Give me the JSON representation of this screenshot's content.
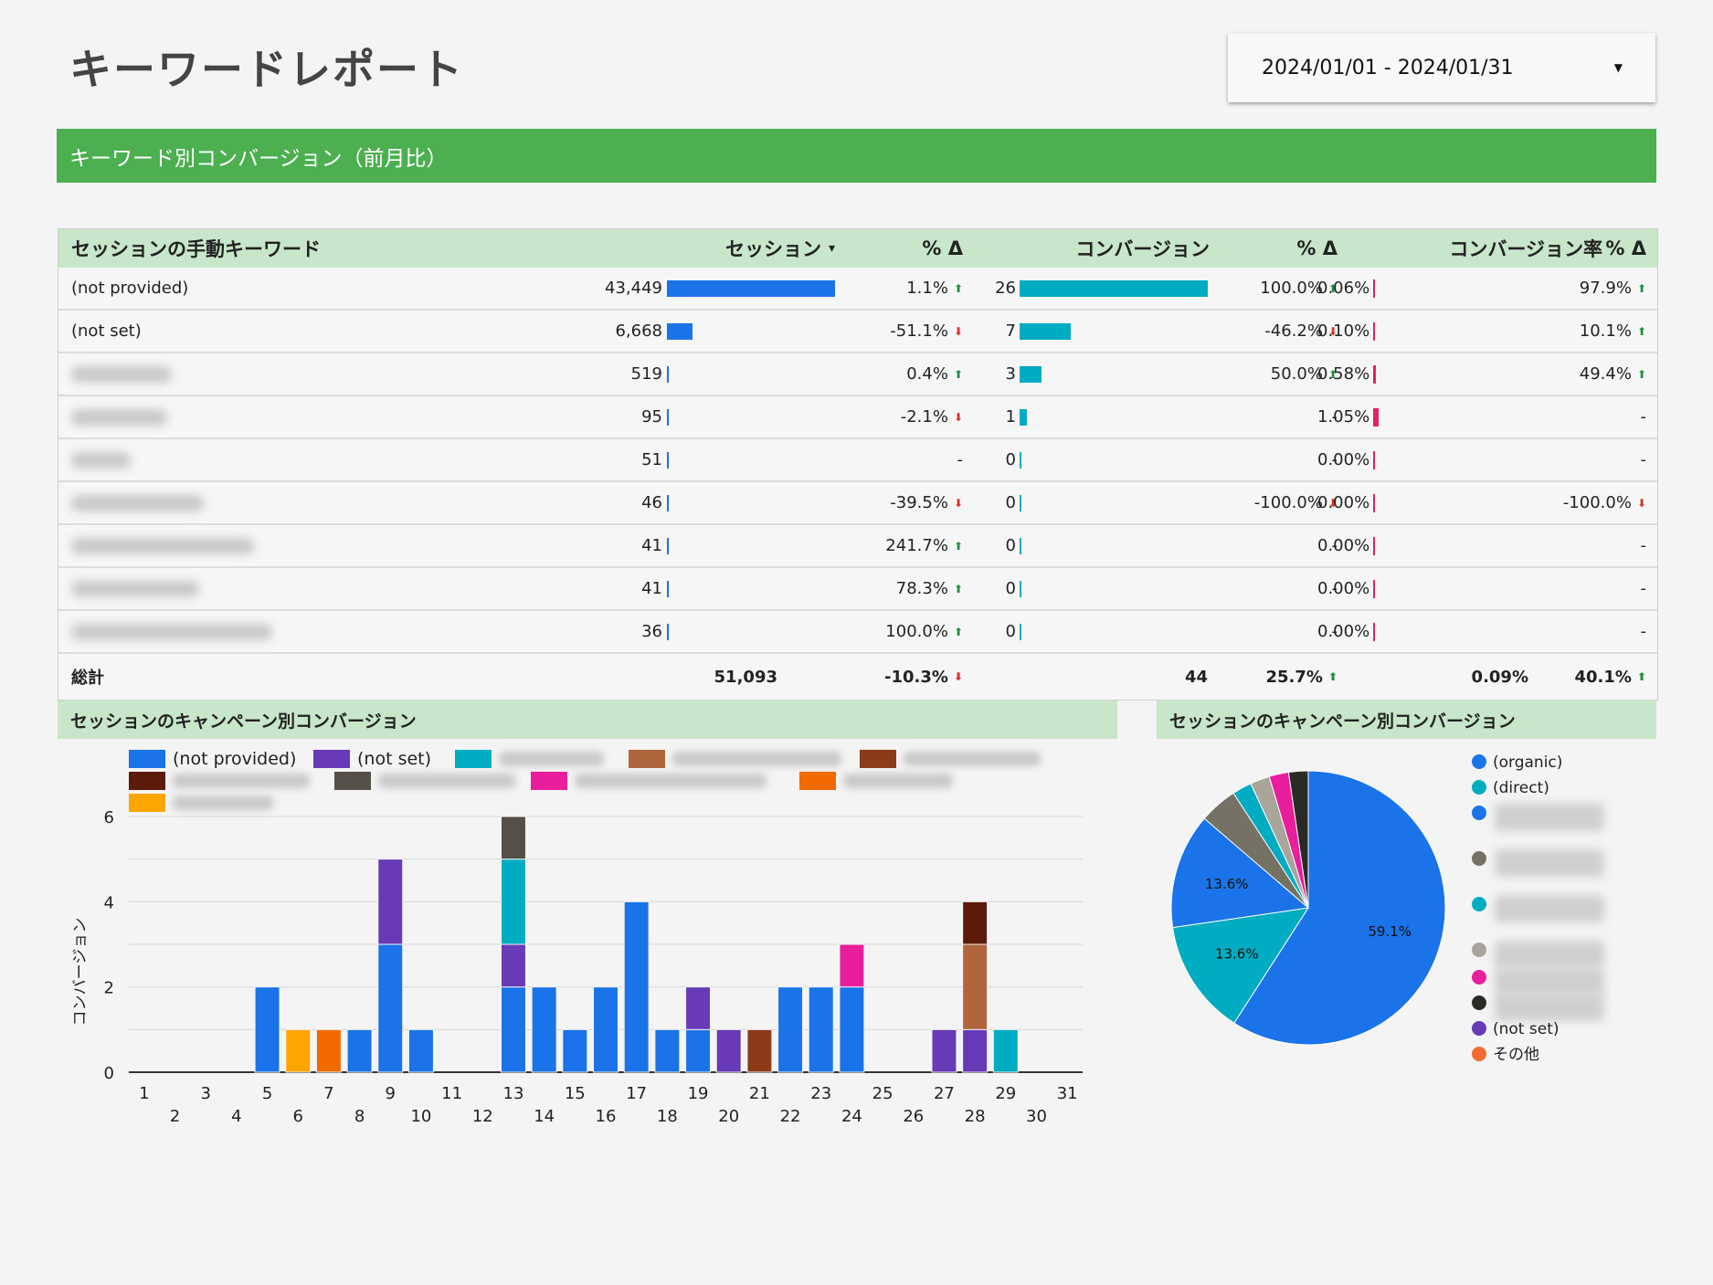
{
  "header": {
    "title": "キーワードレポート",
    "date_range": "2024/01/01 - 2024/01/31"
  },
  "section_title": "キーワード別コンバージョン（前月比）",
  "table": {
    "columns": [
      "セッションの手動キーワード",
      "セッション",
      "% Δ",
      "コンバージョン",
      "% Δ",
      "コンバージョン率",
      "% Δ"
    ],
    "rows": [
      {
        "keyword": "(not provided)",
        "blurred": false,
        "sessions": "43,449",
        "s_bar": 1.0,
        "s_delta": "1.1%",
        "s_dir": "up",
        "conv": "26",
        "c_bar": 1.0,
        "c_delta": "100.0%",
        "c_dir": "up",
        "rate": "0.06%",
        "r_bar": 0.05,
        "r_delta": "97.9%",
        "r_dir": "up"
      },
      {
        "keyword": "(not set)",
        "blurred": false,
        "sessions": "6,668",
        "s_bar": 0.153,
        "s_delta": "-51.1%",
        "s_dir": "down",
        "conv": "7",
        "c_bar": 0.27,
        "c_delta": "-46.2%",
        "c_dir": "down",
        "rate": "0.10%",
        "r_bar": 0.1,
        "r_delta": "10.1%",
        "r_dir": "up"
      },
      {
        "keyword": "",
        "blurred": true,
        "blur_w": 110,
        "sessions": "519",
        "s_bar": 0.012,
        "s_delta": "0.4%",
        "s_dir": "up",
        "conv": "3",
        "c_bar": 0.115,
        "c_delta": "50.0%",
        "c_dir": "up",
        "rate": "0.58%",
        "r_bar": 0.55,
        "r_delta": "49.4%",
        "r_dir": "up"
      },
      {
        "keyword": "",
        "blurred": true,
        "blur_w": 105,
        "sessions": "95",
        "s_bar": 0.002,
        "s_delta": "-2.1%",
        "s_dir": "down",
        "conv": "1",
        "c_bar": 0.038,
        "c_delta": "-",
        "c_dir": "",
        "rate": "1.05%",
        "r_bar": 1.0,
        "r_delta": "-",
        "r_dir": ""
      },
      {
        "keyword": "",
        "blurred": true,
        "blur_w": 65,
        "sessions": "51",
        "s_bar": 0.001,
        "s_delta": "-",
        "s_dir": "",
        "conv": "0",
        "c_bar": 0,
        "c_delta": "-",
        "c_dir": "",
        "rate": "0.00%",
        "r_bar": 0,
        "r_delta": "-",
        "r_dir": ""
      },
      {
        "keyword": "",
        "blurred": true,
        "blur_w": 145,
        "sessions": "46",
        "s_bar": 0.001,
        "s_delta": "-39.5%",
        "s_dir": "down",
        "conv": "0",
        "c_bar": 0,
        "c_delta": "-100.0%",
        "c_dir": "down",
        "rate": "0.00%",
        "r_bar": 0,
        "r_delta": "-100.0%",
        "r_dir": "down"
      },
      {
        "keyword": "",
        "blurred": true,
        "blur_w": 200,
        "sessions": "41",
        "s_bar": 0.001,
        "s_delta": "241.7%",
        "s_dir": "up",
        "conv": "0",
        "c_bar": 0,
        "c_delta": "-",
        "c_dir": "",
        "rate": "0.00%",
        "r_bar": 0,
        "r_delta": "-",
        "r_dir": ""
      },
      {
        "keyword": "",
        "blurred": true,
        "blur_w": 140,
        "sessions": "41",
        "s_bar": 0.001,
        "s_delta": "78.3%",
        "s_dir": "up",
        "conv": "0",
        "c_bar": 0,
        "c_delta": "-",
        "c_dir": "",
        "rate": "0.00%",
        "r_bar": 0,
        "r_delta": "-",
        "r_dir": ""
      },
      {
        "keyword": "",
        "blurred": true,
        "blur_w": 220,
        "sessions": "36",
        "s_bar": 0.001,
        "s_delta": "100.0%",
        "s_dir": "up",
        "conv": "0",
        "c_bar": 0,
        "c_delta": "-",
        "c_dir": "",
        "rate": "0.00%",
        "r_bar": 0,
        "r_delta": "-",
        "r_dir": ""
      }
    ],
    "total": {
      "label": "総計",
      "sessions": "51,093",
      "s_delta": "-10.3%",
      "s_dir": "down",
      "conv": "44",
      "c_delta": "25.7%",
      "c_dir": "up",
      "rate": "0.09%",
      "r_delta": "40.1%",
      "r_dir": "up"
    }
  },
  "colors": {
    "sessions_bar": "#1a73e8",
    "conv_bar": "#00acc1",
    "rate_bar": "#e91e63",
    "up": "#1e8e3e",
    "down": "#d93025",
    "banner": "#4caf50",
    "header_bg": "#c8e6c9"
  },
  "bar_panel_title": "セッションのキャンペーン別コンバージョン",
  "pie_panel_title": "セッションのキャンペーン別コンバージョン",
  "chart_data": [
    {
      "type": "bar",
      "stacked": true,
      "ylabel": "コンバージョン",
      "ylim": [
        0,
        6
      ],
      "yticks": [
        0,
        2,
        4,
        6
      ],
      "categories": [
        "1",
        "2",
        "3",
        "4",
        "5",
        "6",
        "7",
        "8",
        "9",
        "10",
        "11",
        "12",
        "13",
        "14",
        "15",
        "16",
        "17",
        "18",
        "19",
        "20",
        "21",
        "22",
        "23",
        "24",
        "25",
        "26",
        "27",
        "28",
        "29",
        "30",
        "31"
      ],
      "legend": [
        {
          "name": "(not provided)",
          "color": "#1a73e8",
          "blurred": false
        },
        {
          "name": "(not set)",
          "color": "#673ab7",
          "blurred": false
        },
        {
          "name": "",
          "color": "#00acc1",
          "blurred": true
        },
        {
          "name": "",
          "color": "#b0653c",
          "blurred": true
        },
        {
          "name": "",
          "color": "#8b3a1a",
          "blurred": true
        },
        {
          "name": "",
          "color": "#5c1a0a",
          "blurred": true
        },
        {
          "name": "",
          "color": "#555047",
          "blurred": true
        },
        {
          "name": "",
          "color": "#e91e9c",
          "blurred": true
        },
        {
          "name": "",
          "color": "#f06a00",
          "blurred": true
        },
        {
          "name": "",
          "color": "#ffa500",
          "blurred": true
        }
      ],
      "series": [
        {
          "name": "(not provided)",
          "color": "#1a73e8",
          "values": [
            0,
            0,
            0,
            0,
            2,
            0,
            0,
            1,
            3,
            1,
            0,
            0,
            2,
            2,
            1,
            2,
            4,
            1,
            1,
            0,
            0,
            2,
            2,
            2,
            0,
            0,
            0,
            0,
            0,
            0,
            0
          ]
        },
        {
          "name": "(not set)",
          "color": "#673ab7",
          "values": [
            0,
            0,
            0,
            0,
            0,
            0,
            0,
            0,
            2,
            0,
            0,
            0,
            1,
            0,
            0,
            0,
            0,
            0,
            1,
            1,
            0,
            0,
            0,
            0,
            0,
            0,
            1,
            1,
            0,
            0,
            0
          ]
        },
        {
          "color": "#00acc1",
          "values": [
            0,
            0,
            0,
            0,
            0,
            0,
            0,
            0,
            0,
            0,
            0,
            0,
            2,
            0,
            0,
            0,
            0,
            0,
            0,
            0,
            0,
            0,
            0,
            0,
            0,
            0,
            0,
            0,
            1,
            0,
            0
          ]
        },
        {
          "color": "#b0653c",
          "values": [
            0,
            0,
            0,
            0,
            0,
            0,
            0,
            0,
            0,
            0,
            0,
            0,
            0,
            0,
            0,
            0,
            0,
            0,
            0,
            0,
            0,
            0,
            0,
            0,
            0,
            0,
            0,
            2,
            0,
            0,
            0
          ]
        },
        {
          "color": "#8b3a1a",
          "values": [
            0,
            0,
            0,
            0,
            0,
            0,
            0,
            0,
            0,
            0,
            0,
            0,
            0,
            0,
            0,
            0,
            0,
            0,
            0,
            0,
            1,
            0,
            0,
            0,
            0,
            0,
            0,
            0,
            0,
            0,
            0
          ]
        },
        {
          "color": "#5c1a0a",
          "values": [
            0,
            0,
            0,
            0,
            0,
            0,
            0,
            0,
            0,
            0,
            0,
            0,
            0,
            0,
            0,
            0,
            0,
            0,
            0,
            0,
            0,
            0,
            0,
            0,
            0,
            0,
            0,
            1,
            0,
            0,
            0
          ]
        },
        {
          "color": "#555047",
          "values": [
            0,
            0,
            0,
            0,
            0,
            0,
            0,
            0,
            0,
            0,
            0,
            0,
            1,
            0,
            0,
            0,
            0,
            0,
            0,
            0,
            0,
            0,
            0,
            0,
            0,
            0,
            0,
            0,
            0,
            0,
            0
          ]
        },
        {
          "color": "#e91e9c",
          "values": [
            0,
            0,
            0,
            0,
            0,
            0,
            0,
            0,
            0,
            0,
            0,
            0,
            0,
            0,
            0,
            0,
            0,
            0,
            0,
            0,
            0,
            0,
            0,
            1,
            0,
            0,
            0,
            0,
            0,
            0,
            0
          ]
        },
        {
          "color": "#f06a00",
          "values": [
            0,
            0,
            0,
            0,
            0,
            0,
            1,
            0,
            0,
            0,
            0,
            0,
            0,
            0,
            0,
            0,
            0,
            0,
            0,
            0,
            0,
            0,
            0,
            0,
            0,
            0,
            0,
            0,
            0,
            0,
            0
          ]
        },
        {
          "color": "#ffa500",
          "values": [
            0,
            0,
            0,
            0,
            0,
            1,
            0,
            0,
            0,
            0,
            0,
            0,
            0,
            0,
            0,
            0,
            0,
            0,
            0,
            0,
            0,
            0,
            0,
            0,
            0,
            0,
            0,
            0,
            0,
            0,
            0
          ]
        }
      ]
    },
    {
      "type": "pie",
      "slices": [
        {
          "name": "(organic)",
          "value": 59.1,
          "label": "59.1%",
          "color": "#1a73e8"
        },
        {
          "name": "(direct)",
          "value": 13.6,
          "label": "13.6%",
          "color": "#00acc1"
        },
        {
          "name": "",
          "value": 13.6,
          "label": "13.6%",
          "color": "#1a73e8",
          "blurred": true
        },
        {
          "name": "",
          "value": 4.5,
          "label": "",
          "color": "#757164",
          "blurred": true
        },
        {
          "name": "",
          "value": 2.3,
          "label": "",
          "color": "#00acc1",
          "blurred": true
        },
        {
          "name": "",
          "value": 2.3,
          "label": "",
          "color": "#a9a59b",
          "blurred": true
        },
        {
          "name": "",
          "value": 2.3,
          "label": "",
          "color": "#e91e9c",
          "blurred": true
        },
        {
          "name": "",
          "value": 2.3,
          "label": "",
          "color": "#2b2b26",
          "blurred": true
        },
        {
          "name": "(not set)",
          "value": 0,
          "label": "",
          "color": "#673ab7"
        },
        {
          "name": "その他",
          "value": 0,
          "label": "",
          "color": "#f06a33"
        }
      ]
    }
  ]
}
